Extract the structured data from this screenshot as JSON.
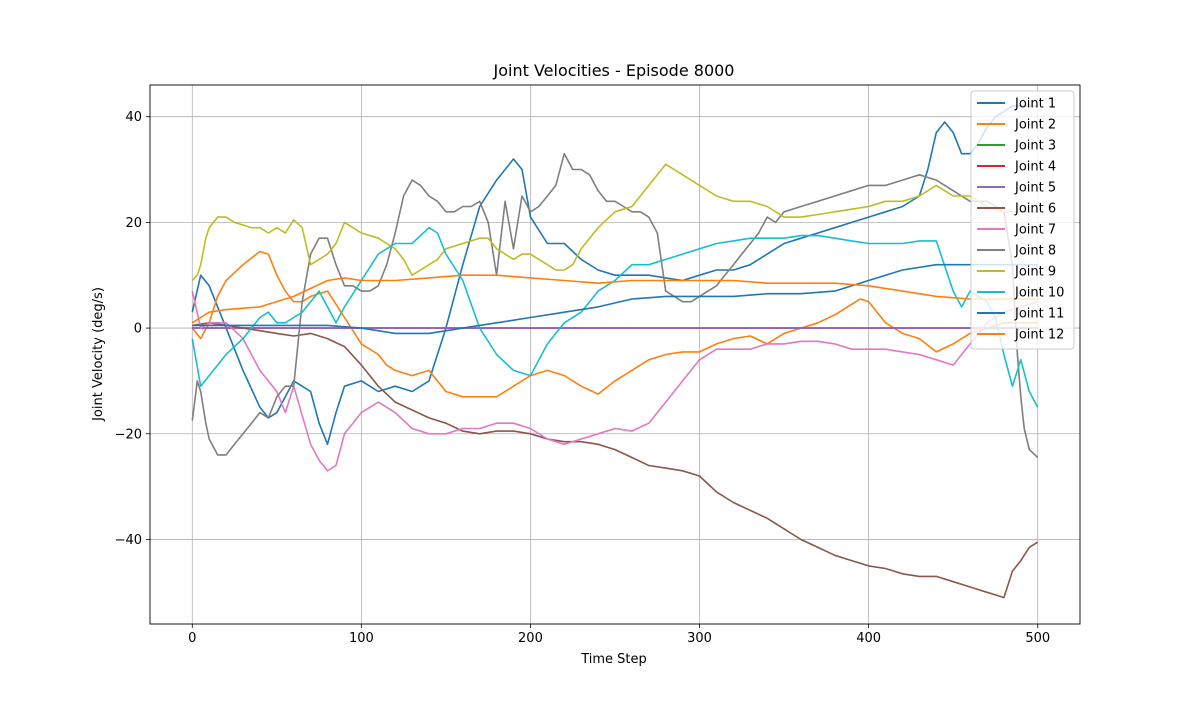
{
  "chart_data": {
    "type": "line",
    "title": "Joint Velocities - Episode 8000",
    "xlabel": "Time Step",
    "ylabel": "Joint Velocity (deg/s)",
    "xlim": [
      -25,
      525
    ],
    "ylim": [
      -56,
      46
    ],
    "xticks": [
      0,
      100,
      200,
      300,
      400,
      500
    ],
    "yticks": [
      -40,
      -20,
      0,
      20,
      40
    ],
    "xtick_labels": [
      "0",
      "100",
      "200",
      "300",
      "400",
      "500"
    ],
    "ytick_labels": [
      "−40",
      "−20",
      "0",
      "20",
      "40"
    ],
    "grid": true,
    "legend_position": "top-right",
    "series": [
      {
        "name": "Joint 1",
        "color": "#1f77b4",
        "x": [
          0,
          5,
          10,
          20,
          30,
          40,
          45,
          50,
          55,
          60,
          65,
          70,
          75,
          80,
          85,
          90,
          100,
          110,
          120,
          130,
          140,
          150,
          160,
          170,
          180,
          190,
          195,
          200,
          210,
          220,
          230,
          240,
          250,
          260,
          270,
          280,
          290,
          300,
          310,
          320,
          330,
          340,
          350,
          360,
          370,
          380,
          390,
          400,
          410,
          420,
          430,
          435,
          440,
          445,
          450,
          455,
          460,
          465,
          470,
          475,
          480,
          485,
          490,
          495,
          500
        ],
        "y": [
          3,
          10,
          8,
          0,
          -8,
          -15,
          -17,
          -16,
          -13,
          -10,
          -11,
          -12,
          -18,
          -22,
          -16,
          -11,
          -10,
          -12,
          -11,
          -12,
          -10,
          0,
          12,
          23,
          28,
          32,
          30,
          21,
          16,
          16,
          13,
          11,
          10,
          10,
          10,
          9.5,
          9,
          10,
          11,
          11,
          12,
          14,
          16,
          17,
          18,
          19,
          20,
          21,
          22,
          23,
          25,
          30,
          37,
          39,
          37,
          33,
          33,
          35,
          38,
          40,
          41,
          42,
          42,
          42,
          42
        ]
      },
      {
        "name": "Joint 2",
        "color": "#ff7f0e",
        "x": [
          0,
          5,
          10,
          15,
          20,
          30,
          40,
          45,
          50,
          55,
          60,
          65,
          70,
          80,
          90,
          100,
          110,
          115,
          120,
          130,
          140,
          150,
          160,
          170,
          180,
          190,
          200,
          210,
          220,
          230,
          240,
          250,
          260,
          270,
          280,
          290,
          300,
          310,
          320,
          330,
          340,
          350,
          360,
          370,
          380,
          390,
          395,
          400,
          410,
          420,
          430,
          440,
          450,
          460,
          470,
          480,
          490,
          500
        ],
        "y": [
          0,
          -2,
          1,
          6,
          9,
          12,
          14.5,
          14,
          10,
          7,
          5,
          5,
          6,
          7,
          2,
          -3,
          -5,
          -7,
          -8,
          -9,
          -8,
          -12,
          -13,
          -13,
          -13,
          -11,
          -9,
          -8,
          -9,
          -11,
          -12.5,
          -10,
          -8,
          -6,
          -5,
          -4.5,
          -4.5,
          -3,
          -2,
          -1.5,
          -3,
          -1,
          0,
          1,
          2.5,
          4.5,
          5.5,
          5,
          1,
          -1,
          -2,
          -4.5,
          -3,
          -1,
          0,
          1,
          1,
          1
        ]
      },
      {
        "name": "Joint 3",
        "color": "#2ca02c",
        "x": [
          0,
          500
        ],
        "y": [
          0,
          0
        ]
      },
      {
        "name": "Joint 4",
        "color": "#d62728",
        "x": [
          0,
          500
        ],
        "y": [
          0,
          0
        ]
      },
      {
        "name": "Joint 5",
        "color": "#9467bd",
        "x": [
          0,
          500
        ],
        "y": [
          0,
          0
        ]
      },
      {
        "name": "Joint 6",
        "color": "#8c564b",
        "x": [
          0,
          10,
          20,
          30,
          40,
          50,
          60,
          70,
          80,
          90,
          100,
          110,
          120,
          130,
          140,
          150,
          160,
          170,
          180,
          190,
          200,
          210,
          220,
          230,
          240,
          250,
          260,
          270,
          280,
          290,
          300,
          310,
          320,
          330,
          340,
          350,
          360,
          370,
          380,
          390,
          400,
          410,
          420,
          430,
          440,
          450,
          460,
          470,
          475,
          480,
          485,
          490,
          495,
          500
        ],
        "y": [
          0.5,
          1,
          0.5,
          0,
          -0.5,
          -1,
          -1.5,
          -1,
          -2,
          -3.5,
          -7,
          -11,
          -14,
          -15.5,
          -17,
          -18,
          -19.5,
          -20,
          -19.5,
          -19.5,
          -20,
          -21,
          -21.5,
          -21.5,
          -22,
          -23,
          -24.5,
          -26,
          -26.5,
          -27,
          -28,
          -31,
          -33,
          -34.5,
          -36,
          -38,
          -40,
          -41.5,
          -43,
          -44,
          -45,
          -45.5,
          -46.5,
          -47,
          -47,
          -48,
          -49,
          -50,
          -50.5,
          -51,
          -46,
          -44,
          -41.5,
          -40.5
        ]
      },
      {
        "name": "Joint 7",
        "color": "#e377c2",
        "x": [
          0,
          5,
          10,
          20,
          30,
          40,
          50,
          55,
          60,
          70,
          75,
          80,
          85,
          90,
          100,
          110,
          120,
          130,
          140,
          150,
          160,
          170,
          180,
          190,
          200,
          210,
          220,
          230,
          240,
          250,
          260,
          270,
          280,
          290,
          300,
          310,
          320,
          330,
          340,
          350,
          360,
          370,
          380,
          390,
          400,
          410,
          420,
          430,
          440,
          450,
          460,
          465,
          470,
          480,
          490,
          500
        ],
        "y": [
          7,
          0,
          1,
          1,
          -2,
          -8,
          -12,
          -16,
          -11,
          -22,
          -25,
          -27,
          -26,
          -20,
          -16,
          -14,
          -16,
          -19,
          -20,
          -20,
          -19,
          -19,
          -18,
          -18,
          -19,
          -21,
          -22,
          -21,
          -20,
          -19,
          -19.5,
          -18,
          -14,
          -10,
          -6,
          -4,
          -4,
          -4,
          -3,
          -3,
          -2.5,
          -2.5,
          -3,
          -4,
          -4,
          -4,
          -4.5,
          -5,
          -6,
          -7,
          -3,
          -1,
          1,
          3,
          4,
          5
        ]
      },
      {
        "name": "Joint 8",
        "color": "#7f7f7f",
        "x": [
          0,
          3,
          5,
          8,
          10,
          15,
          20,
          25,
          30,
          35,
          40,
          45,
          50,
          55,
          60,
          65,
          70,
          75,
          80,
          85,
          90,
          95,
          100,
          105,
          110,
          115,
          120,
          125,
          130,
          135,
          140,
          145,
          150,
          155,
          160,
          165,
          170,
          175,
          180,
          185,
          190,
          195,
          200,
          205,
          210,
          215,
          220,
          225,
          230,
          235,
          240,
          245,
          250,
          255,
          260,
          265,
          270,
          275,
          280,
          285,
          290,
          295,
          300,
          305,
          310,
          315,
          320,
          325,
          330,
          335,
          340,
          345,
          350,
          360,
          370,
          380,
          390,
          400,
          410,
          420,
          430,
          440,
          450,
          460,
          470,
          475,
          480,
          485,
          488,
          490,
          492,
          495,
          500
        ],
        "y": [
          -17.5,
          -10,
          -12,
          -18,
          -21,
          -24,
          -24,
          -22,
          -20,
          -18,
          -16,
          -17,
          -13,
          -11,
          -11,
          5,
          14,
          17,
          17,
          12,
          8,
          8,
          7,
          7,
          8,
          12,
          18,
          25,
          28,
          27,
          25,
          24,
          22,
          22,
          23,
          23,
          24,
          20,
          10,
          24,
          15,
          25,
          22,
          23,
          25,
          27,
          33,
          30,
          30,
          29,
          26,
          24,
          24,
          23,
          22,
          22,
          21,
          18,
          7,
          6,
          5,
          5,
          6,
          7,
          8,
          10,
          12,
          14,
          16,
          18,
          21,
          20,
          22,
          23,
          24,
          25,
          26,
          27,
          27,
          28,
          29,
          28,
          26,
          24,
          24,
          23,
          22,
          12,
          -5,
          -13,
          -19,
          -23,
          -24.5
        ]
      },
      {
        "name": "Joint 9",
        "color": "#bcbd22",
        "x": [
          0,
          3,
          5,
          8,
          10,
          15,
          20,
          25,
          30,
          35,
          40,
          45,
          50,
          55,
          60,
          65,
          70,
          75,
          80,
          85,
          90,
          95,
          100,
          110,
          120,
          125,
          130,
          135,
          140,
          145,
          150,
          160,
          170,
          175,
          180,
          185,
          190,
          195,
          200,
          205,
          210,
          215,
          220,
          225,
          230,
          240,
          250,
          260,
          270,
          275,
          280,
          285,
          290,
          295,
          300,
          305,
          310,
          320,
          330,
          340,
          350,
          360,
          370,
          380,
          390,
          400,
          410,
          420,
          430,
          440,
          450,
          460,
          470,
          480,
          490,
          500
        ],
        "y": [
          9,
          10,
          12,
          17,
          19,
          21,
          21,
          20,
          19.5,
          19,
          19,
          18,
          19,
          18,
          20.5,
          19,
          12,
          13,
          14,
          16,
          20,
          19,
          18,
          17,
          15,
          13,
          10,
          11,
          12,
          13,
          15,
          16,
          17,
          17,
          15,
          14,
          13,
          14,
          14,
          13,
          12,
          11,
          11,
          12,
          15,
          19,
          22,
          23,
          27,
          29,
          31,
          30,
          29,
          28,
          27,
          26,
          25,
          24,
          24,
          23,
          21,
          21,
          21.5,
          22,
          22.5,
          23,
          24,
          24,
          25,
          27,
          25,
          25,
          23,
          22,
          22,
          22
        ]
      },
      {
        "name": "Joint 10",
        "color": "#17becf",
        "x": [
          0,
          5,
          10,
          20,
          30,
          40,
          45,
          50,
          55,
          60,
          65,
          70,
          75,
          80,
          85,
          90,
          100,
          110,
          120,
          130,
          140,
          145,
          150,
          160,
          170,
          180,
          190,
          200,
          210,
          220,
          230,
          240,
          250,
          260,
          270,
          280,
          290,
          300,
          310,
          320,
          330,
          340,
          350,
          360,
          370,
          380,
          390,
          400,
          410,
          420,
          430,
          440,
          450,
          455,
          460,
          465,
          470,
          475,
          480,
          485,
          490,
          495,
          500
        ],
        "y": [
          -2,
          -11,
          -9,
          -5,
          -2,
          2,
          3,
          1,
          1,
          2,
          3,
          5,
          7,
          4,
          1,
          4,
          9,
          14,
          16,
          16,
          19,
          18,
          14,
          9,
          0,
          -5,
          -8,
          -9,
          -3,
          1,
          3,
          7,
          9,
          12,
          12,
          13,
          14,
          15,
          16,
          16.5,
          17,
          17,
          17,
          17.5,
          17.5,
          17,
          16.5,
          16,
          16,
          16,
          16.5,
          16.5,
          7,
          4,
          7,
          6,
          5,
          2,
          -5,
          -11,
          -6,
          -12,
          -15
        ]
      },
      {
        "name": "Joint 11",
        "color": "#1f77b4",
        "x": [
          0,
          10,
          20,
          40,
          60,
          80,
          100,
          120,
          140,
          160,
          170,
          180,
          190,
          200,
          220,
          240,
          260,
          280,
          300,
          320,
          340,
          360,
          380,
          400,
          420,
          440,
          460,
          480,
          500
        ],
        "y": [
          0.5,
          0.5,
          0.5,
          0.5,
          0.5,
          0.5,
          0,
          -1,
          -1,
          0,
          0.5,
          1,
          1.5,
          2,
          3,
          4,
          5.5,
          6,
          6,
          6,
          6.5,
          6.5,
          7,
          9,
          11,
          12,
          12,
          12,
          12
        ]
      },
      {
        "name": "Joint 12",
        "color": "#ff7f0e",
        "x": [
          0,
          5,
          10,
          20,
          40,
          60,
          80,
          90,
          100,
          120,
          140,
          160,
          180,
          200,
          220,
          240,
          260,
          280,
          300,
          320,
          340,
          360,
          380,
          400,
          420,
          440,
          460,
          480,
          500
        ],
        "y": [
          1,
          2,
          3,
          3.5,
          4,
          6,
          9,
          9.5,
          9,
          9,
          9.5,
          10,
          10,
          9.5,
          9,
          8.5,
          9,
          9,
          9,
          9,
          8.5,
          8.5,
          8.5,
          8,
          7,
          6,
          5.5,
          5.5,
          5.5
        ]
      }
    ]
  }
}
